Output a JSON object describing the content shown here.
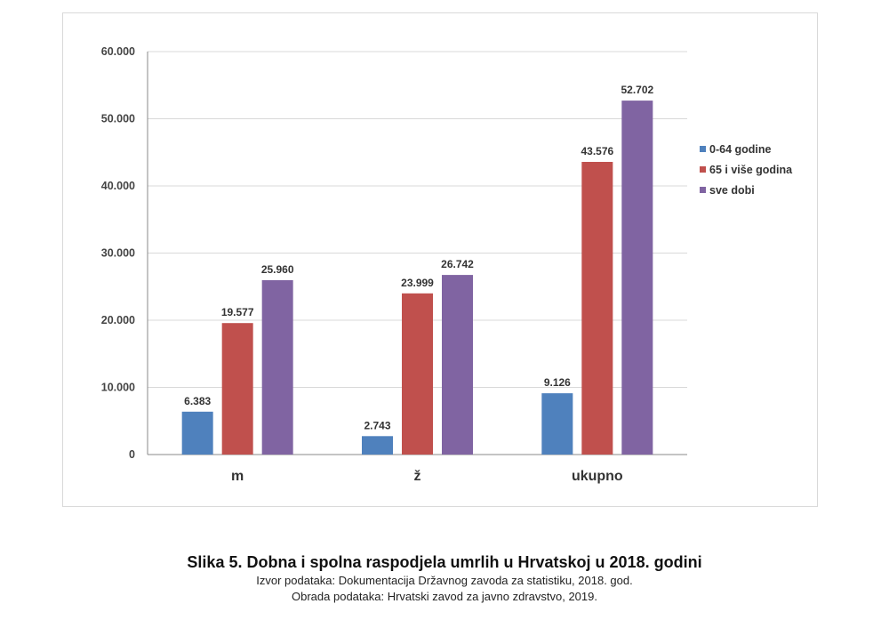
{
  "chart_data": {
    "type": "bar",
    "categories": [
      "m",
      "ž",
      "ukupno"
    ],
    "series": [
      {
        "name": "0-64 godine",
        "values": [
          6383,
          2743,
          9126
        ],
        "labels": [
          "6.383",
          "2.743",
          "9.126"
        ],
        "color": "#4f81bd"
      },
      {
        "name": "65 i više godina",
        "values": [
          19577,
          23999,
          43576
        ],
        "labels": [
          "19.577",
          "23.999",
          "43.576"
        ],
        "color": "#c0504d"
      },
      {
        "name": "sve dobi",
        "values": [
          25960,
          26742,
          52702
        ],
        "labels": [
          "25.960",
          "26.742",
          "52.702"
        ],
        "color": "#8064a2"
      }
    ],
    "ylim": [
      0,
      60000
    ],
    "yticks": [
      0,
      10000,
      20000,
      30000,
      40000,
      50000,
      60000
    ],
    "ytick_labels": [
      "0",
      "10.000",
      "20.000",
      "30.000",
      "40.000",
      "50.000",
      "60.000"
    ],
    "grid": true,
    "legend_position": "right"
  },
  "caption": {
    "title": "Slika 5. Dobna i spolna raspodjela umrlih u Hrvatskoj u 2018. godini",
    "source": "Izvor podataka: Dokumentacija Državnog zavoda za statistiku, 2018. god.",
    "processing": "Obrada podataka: Hrvatski zavod za javno zdravstvo, 2019."
  }
}
